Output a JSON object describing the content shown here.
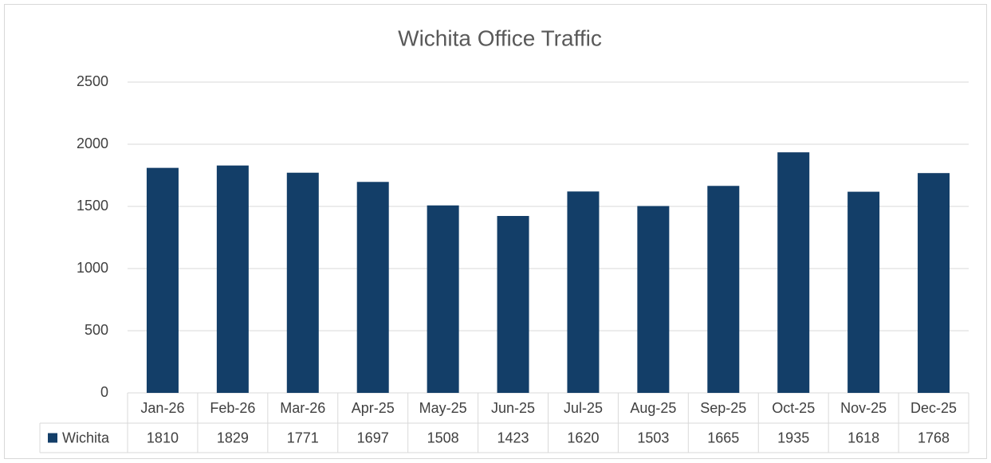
{
  "chart_data": {
    "type": "bar",
    "title": "Wichita Office Traffic",
    "categories": [
      "Jan-26",
      "Feb-26",
      "Mar-26",
      "Apr-25",
      "May-25",
      "Jun-25",
      "Jul-25",
      "Aug-25",
      "Sep-25",
      "Oct-25",
      "Nov-25",
      "Dec-25"
    ],
    "series": [
      {
        "name": "Wichita",
        "color": "#133e68",
        "values": [
          1810,
          1829,
          1771,
          1697,
          1508,
          1423,
          1620,
          1503,
          1665,
          1935,
          1618,
          1768
        ]
      }
    ],
    "ylim": [
      0,
      2500
    ],
    "yticks": [
      0,
      500,
      1000,
      1500,
      2000,
      2500
    ],
    "grid": true,
    "data_table": true
  }
}
